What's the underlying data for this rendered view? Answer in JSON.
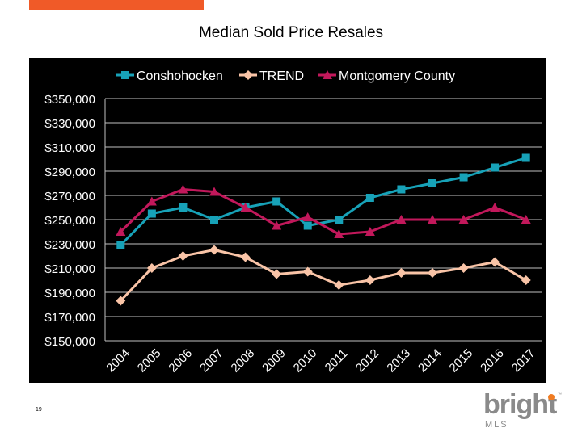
{
  "accent_color": "#f05a28",
  "page_number": "19",
  "logo": {
    "word": "bright",
    "sub": "MLS",
    "tm": "™",
    "dot_color": "#f07c23"
  },
  "chart_data": {
    "type": "line",
    "title": "Median Sold Price Resales",
    "xlabel": "",
    "ylabel": "",
    "categories": [
      "2004",
      "2005",
      "2006",
      "2007",
      "2008",
      "2009",
      "2010",
      "2011",
      "2012",
      "2013",
      "2014",
      "2015",
      "2016",
      "2017"
    ],
    "ylim": [
      150000,
      350000
    ],
    "yticks": [
      150000,
      170000,
      190000,
      210000,
      230000,
      250000,
      270000,
      290000,
      310000,
      330000,
      350000
    ],
    "ytick_labels": [
      "$150,000",
      "$170,000",
      "$190,000",
      "$210,000",
      "$230,000",
      "$250,000",
      "$270,000",
      "$290,000",
      "$310,000",
      "$330,000",
      "$350,000"
    ],
    "grid": true,
    "legend_position": "top",
    "series": [
      {
        "name": "Conshohocken",
        "color": "#17a2b8",
        "marker": "square",
        "values": [
          229000,
          255000,
          260000,
          250000,
          260000,
          265000,
          245000,
          250000,
          268000,
          275000,
          280000,
          285000,
          293000,
          301000
        ]
      },
      {
        "name": "TREND",
        "color": "#f9c4a7",
        "marker": "diamond",
        "values": [
          183000,
          210000,
          220000,
          225000,
          219000,
          205000,
          207000,
          196000,
          200000,
          206000,
          206000,
          210000,
          215000,
          200000
        ]
      },
      {
        "name": "Montgomery County",
        "color": "#c2185b",
        "marker": "triangle",
        "values": [
          240000,
          265000,
          275000,
          273000,
          260000,
          245000,
          252000,
          238000,
          240000,
          250000,
          250000,
          250000,
          260000,
          250000
        ]
      }
    ]
  }
}
